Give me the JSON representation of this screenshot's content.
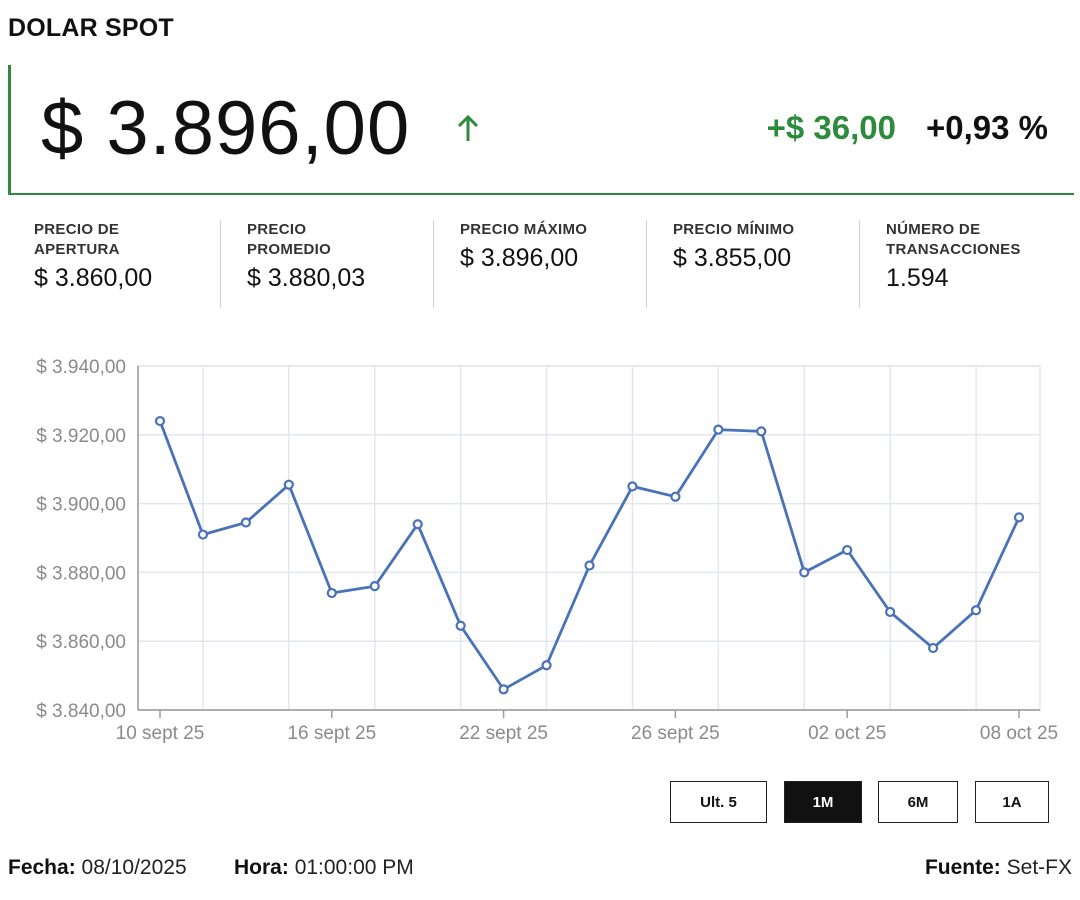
{
  "title": "DOLAR SPOT",
  "price": "$ 3.896,00",
  "change_abs": "+$ 36,00",
  "change_pct": "+0,93 %",
  "colors": {
    "up": "#2e8b3d",
    "line": "#4a72b8",
    "grid": "#e3e6ee"
  },
  "icons": {
    "trend": "arrow-up-icon"
  },
  "stats": [
    {
      "label_1": "PRECIO DE",
      "label_2": "APERTURA",
      "value": "$ 3.860,00"
    },
    {
      "label_1": "PRECIO",
      "label_2": "PROMEDIO",
      "value": "$ 3.880,03"
    },
    {
      "label_1": "PRECIO MÁXIMO",
      "label_2": "",
      "value": "$ 3.896,00"
    },
    {
      "label_1": "PRECIO MÍNIMO",
      "label_2": "",
      "value": "$ 3.855,00"
    },
    {
      "label_1": "NÚMERO DE",
      "label_2": "TRANSACCIONES",
      "value": "1.594"
    }
  ],
  "chart_data": {
    "type": "line",
    "title": "",
    "xlabel": "",
    "ylabel": "",
    "x": [
      "10 sept 25",
      "11 sept 25",
      "12 sept 25",
      "15 sept 25",
      "16 sept 25",
      "17 sept 25",
      "18 sept 25",
      "19 sept 25",
      "22 sept 25",
      "23 sept 25",
      "24 sept 25",
      "25 sept 25",
      "26 sept 25",
      "29 sept 25",
      "30 sept 25",
      "01 oct 25",
      "02 oct 25",
      "03 oct 25",
      "06 oct 25",
      "07 oct 25",
      "08 oct 25"
    ],
    "values": [
      3924,
      3891,
      3894.5,
      3905.5,
      3874,
      3876,
      3894,
      3864.5,
      3846,
      3853,
      3882,
      3905,
      3902,
      3921.5,
      3921,
      3880,
      3886.5,
      3868.5,
      3858,
      3869,
      3896
    ],
    "x_tick_labels": [
      "10 sept 25",
      "16 sept 25",
      "22 sept 25",
      "26 sept 25",
      "02 oct 25",
      "08 oct 25"
    ],
    "x_tick_index": [
      0,
      4,
      8,
      12,
      16,
      20
    ],
    "y_tick_labels": [
      "$ 3.840,00",
      "$ 3.860,00",
      "$ 3.880,00",
      "$ 3.900,00",
      "$ 3.920,00",
      "$ 3.940,00"
    ],
    "y_tick_values": [
      3840,
      3860,
      3880,
      3900,
      3920,
      3940
    ],
    "ylim": [
      3840,
      3940
    ],
    "grid": true,
    "legend": "none"
  },
  "range_buttons": [
    "Ult. 5",
    "1M",
    "6M",
    "1A"
  ],
  "range_selected": "1M",
  "footer": {
    "fecha_label": "Fecha:",
    "fecha": "08/10/2025",
    "hora_label": "Hora:",
    "hora": "01:00:00 PM",
    "fuente_label": "Fuente:",
    "fuente": "Set-FX"
  }
}
